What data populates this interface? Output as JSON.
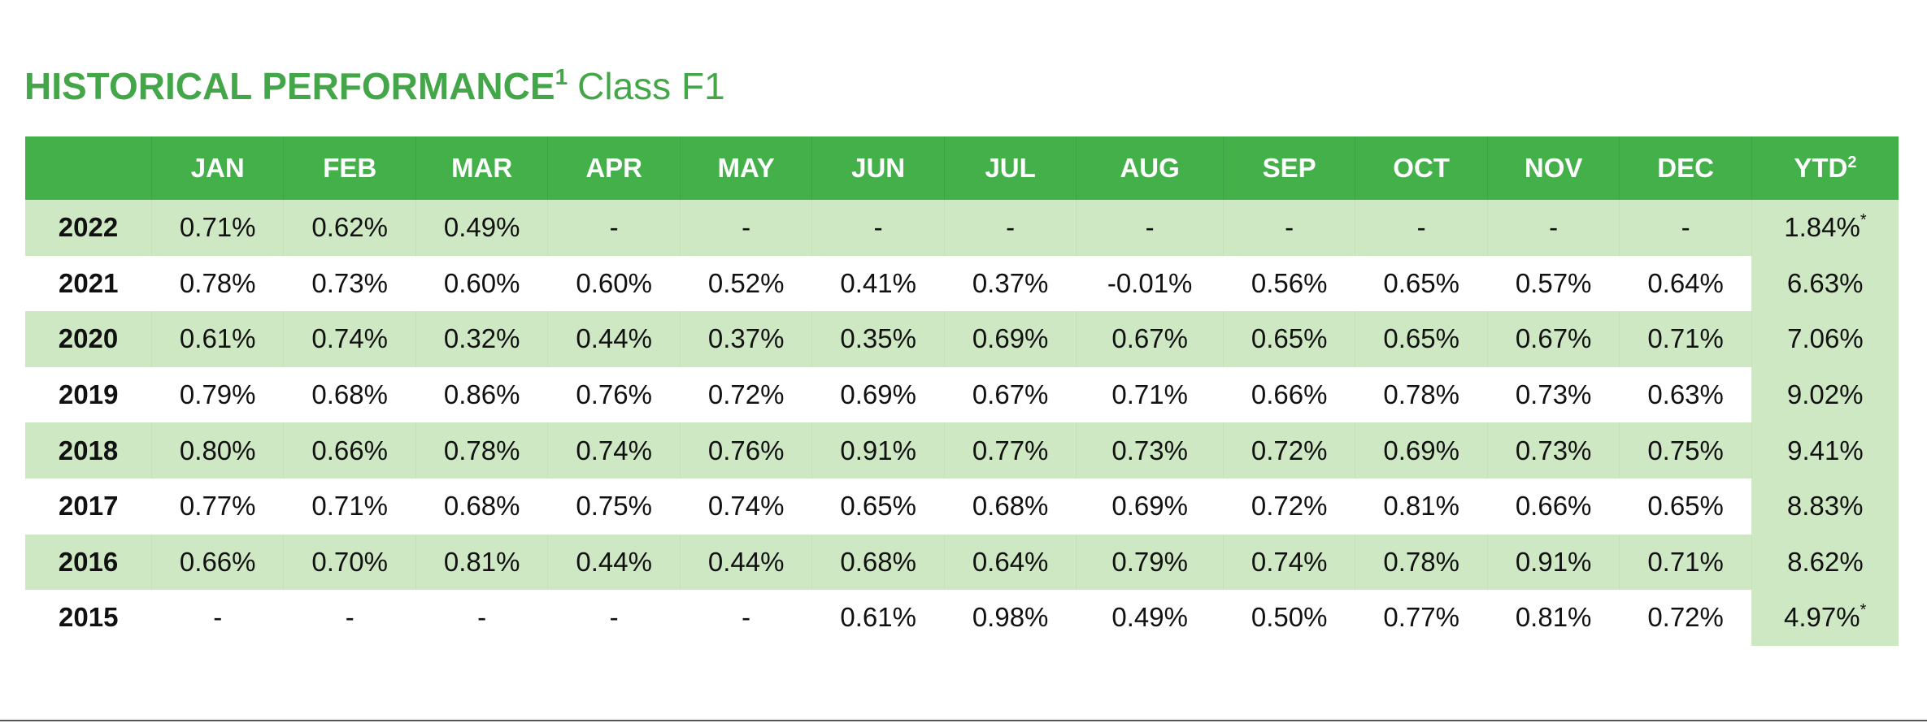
{
  "heading": {
    "title": "HISTORICAL PERFORMANCE",
    "title_footnote": "1",
    "subtitle": "Class F1"
  },
  "colors": {
    "accent_green": "#43b04a",
    "row_shade": "#cfe8c4",
    "text": "#111111"
  },
  "table": {
    "columns": [
      "",
      "JAN",
      "FEB",
      "MAR",
      "APR",
      "MAY",
      "JUN",
      "JUL",
      "AUG",
      "SEP",
      "OCT",
      "NOV",
      "DEC",
      "YTD"
    ],
    "ytd_footnote": "2",
    "rows": [
      {
        "year": "2022",
        "months": [
          "0.71%",
          "0.62%",
          "0.49%",
          "-",
          "-",
          "-",
          "-",
          "-",
          "-",
          "-",
          "-",
          "-"
        ],
        "ytd": "1.84%",
        "ytd_mark": "*"
      },
      {
        "year": "2021",
        "months": [
          "0.78%",
          "0.73%",
          "0.60%",
          "0.60%",
          "0.52%",
          "0.41%",
          "0.37%",
          "-0.01%",
          "0.56%",
          "0.65%",
          "0.57%",
          "0.64%"
        ],
        "ytd": "6.63%",
        "ytd_mark": ""
      },
      {
        "year": "2020",
        "months": [
          "0.61%",
          "0.74%",
          "0.32%",
          "0.44%",
          "0.37%",
          "0.35%",
          "0.69%",
          "0.67%",
          "0.65%",
          "0.65%",
          "0.67%",
          "0.71%"
        ],
        "ytd": "7.06%",
        "ytd_mark": ""
      },
      {
        "year": "2019",
        "months": [
          "0.79%",
          "0.68%",
          "0.86%",
          "0.76%",
          "0.72%",
          "0.69%",
          "0.67%",
          "0.71%",
          "0.66%",
          "0.78%",
          "0.73%",
          "0.63%"
        ],
        "ytd": "9.02%",
        "ytd_mark": ""
      },
      {
        "year": "2018",
        "months": [
          "0.80%",
          "0.66%",
          "0.78%",
          "0.74%",
          "0.76%",
          "0.91%",
          "0.77%",
          "0.73%",
          "0.72%",
          "0.69%",
          "0.73%",
          "0.75%"
        ],
        "ytd": "9.41%",
        "ytd_mark": ""
      },
      {
        "year": "2017",
        "months": [
          "0.77%",
          "0.71%",
          "0.68%",
          "0.75%",
          "0.74%",
          "0.65%",
          "0.68%",
          "0.69%",
          "0.72%",
          "0.81%",
          "0.66%",
          "0.65%"
        ],
        "ytd": "8.83%",
        "ytd_mark": ""
      },
      {
        "year": "2016",
        "months": [
          "0.66%",
          "0.70%",
          "0.81%",
          "0.44%",
          "0.44%",
          "0.68%",
          "0.64%",
          "0.79%",
          "0.74%",
          "0.78%",
          "0.91%",
          "0.71%"
        ],
        "ytd": "8.62%",
        "ytd_mark": ""
      },
      {
        "year": "2015",
        "months": [
          "-",
          "-",
          "-",
          "-",
          "-",
          "0.61%",
          "0.98%",
          "0.49%",
          "0.50%",
          "0.77%",
          "0.81%",
          "0.72%"
        ],
        "ytd": "4.97%",
        "ytd_mark": "*"
      }
    ]
  }
}
